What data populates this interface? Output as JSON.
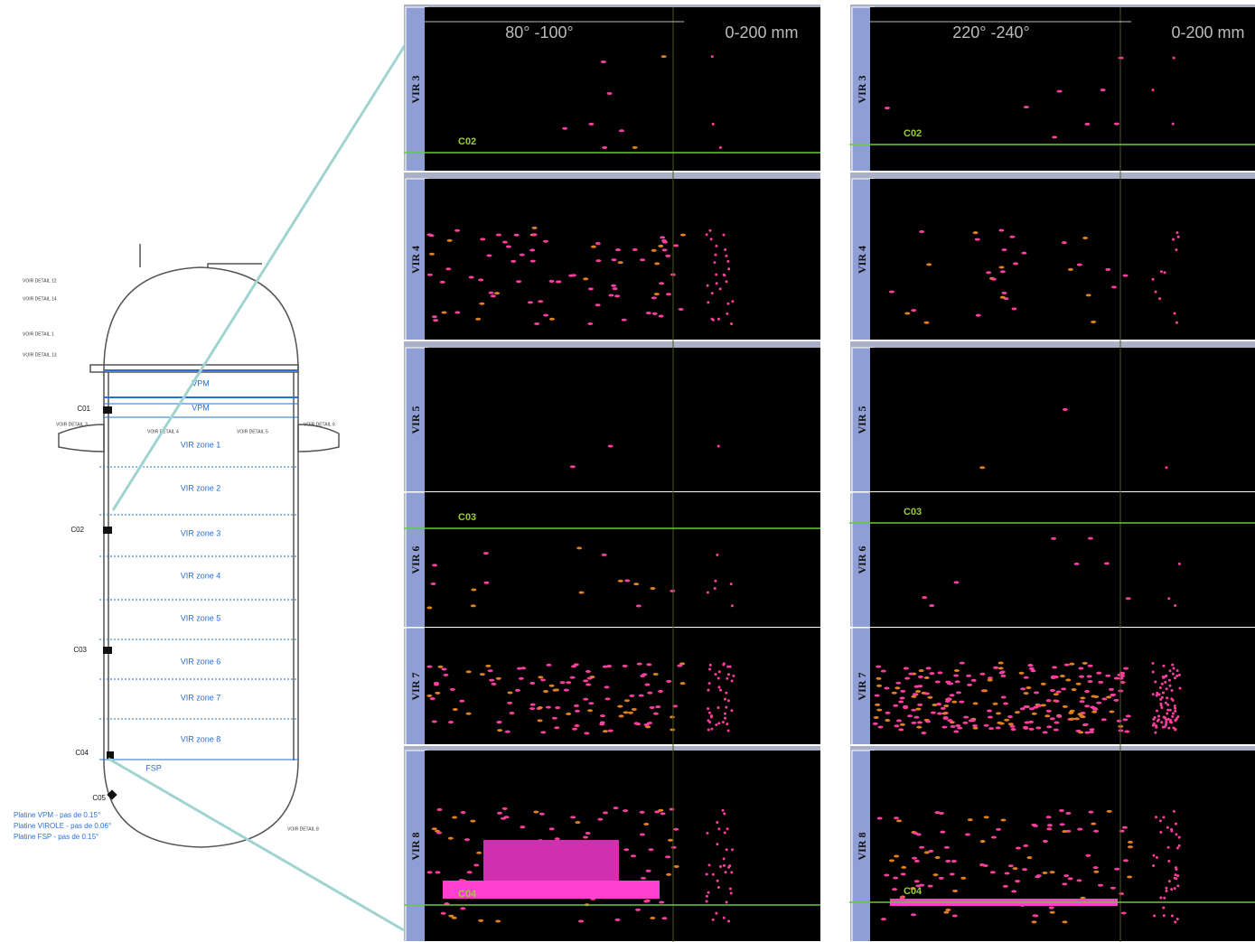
{
  "drawing": {
    "cuts": [
      "C01",
      "C02",
      "C03",
      "C04",
      "C05"
    ],
    "zones": [
      "VPM",
      "VPM",
      "VIR zone 1",
      "VIR zone 2",
      "VIR zone 3",
      "VIR zone 4",
      "VIR zone 5",
      "VIR zone 6",
      "VIR zone 7",
      "VIR zone 8",
      "FSP"
    ],
    "details": [
      "VOIR DETAIL 12",
      "VOIR DETAIL 14",
      "VOIR DETAIL 1",
      "VOIR DETAIL 13",
      "VOIR DETAIL 3",
      "VOIR DETAIL 4",
      "VOIR DETAIL 5",
      "VOIR DETAIL 6",
      "VOIR DETAIL 8"
    ],
    "notes": [
      "Platine VPM - pas de 0.15°",
      "Platine VIROLE - pas de 0.06°",
      "Platine FSP - pas de 0.15°"
    ]
  },
  "scans": [
    {
      "angle": "80° -100°",
      "depth": "0-200 mm",
      "rows": [
        "VIR 3",
        "VIR 4",
        "VIR 5",
        "VIR 6",
        "VIR 7",
        "VIR 8"
      ],
      "markers": [
        "C02",
        "C03",
        "C04"
      ]
    },
    {
      "angle": "220° -240°",
      "depth": "0-200 mm",
      "rows": [
        "VIR 3",
        "VIR 4",
        "VIR 5",
        "VIR 6",
        "VIR 7",
        "VIR 8"
      ],
      "markers": [
        "C02",
        "C03",
        "C04"
      ]
    }
  ]
}
